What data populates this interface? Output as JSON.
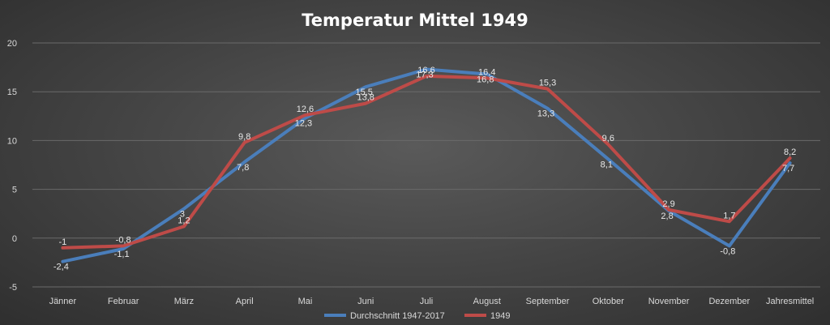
{
  "chart_data": {
    "type": "line",
    "title": "Temperatur Mittel 1949",
    "xlabel": "",
    "ylabel": "",
    "categories": [
      "Jänner",
      "Februar",
      "März",
      "April",
      "Mai",
      "Juni",
      "Juli",
      "August",
      "September",
      "Oktober",
      "November",
      "Dezember",
      "Jahresmittel"
    ],
    "ylim": [
      -5,
      20
    ],
    "yticks": [
      -5,
      0,
      5,
      10,
      15,
      20
    ],
    "grid": true,
    "legend_position": "bottom",
    "series": [
      {
        "name": "Durchschnitt 1947-2017",
        "color": "#4a7ebb",
        "values": [
          -2.4,
          -1.1,
          3,
          7.8,
          12.3,
          15.5,
          17.3,
          16.8,
          13.3,
          8.1,
          2.8,
          -0.8,
          7.7
        ],
        "labels": [
          "-2,4",
          "-1,1",
          "3",
          "7,8",
          "12,3",
          "15,5",
          "17,3",
          "16,8",
          "13,3",
          "8,1",
          "2,8",
          "-0,8",
          "7,7"
        ]
      },
      {
        "name": "1949",
        "color": "#be4b48",
        "values": [
          -1,
          -0.8,
          1.2,
          9.8,
          12.6,
          13.8,
          16.6,
          16.4,
          15.3,
          9.6,
          2.9,
          1.7,
          8.2
        ],
        "labels": [
          "-1",
          "-0,8",
          "1,2",
          "9,8",
          "12,6",
          "13,8",
          "16,6",
          "16,4",
          "15,3",
          "9,6",
          "2,9",
          "1,7",
          "8,2"
        ]
      }
    ]
  }
}
